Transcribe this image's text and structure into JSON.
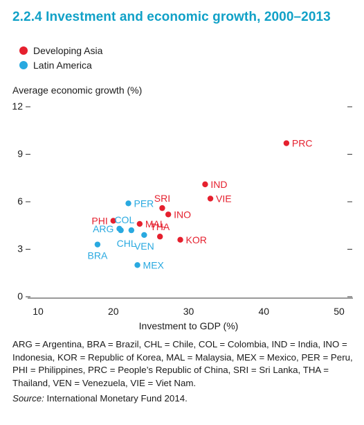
{
  "title": "2.2.4  Investment and economic growth, 2000–2013",
  "colors": {
    "title": "#11a1c7",
    "developing_asia": "#e5202e",
    "latin_america": "#29a9e0",
    "axis": "#333333"
  },
  "legend": [
    {
      "label": "Developing Asia",
      "color": "#e5202e"
    },
    {
      "label": "Latin America",
      "color": "#29a9e0"
    }
  ],
  "footnote": "ARG = Argentina, BRA = Brazil, CHL = Chile, COL = Colombia, IND = India, INO = Indonesia, KOR = Republic of Korea, MAL = Malaysia, MEX = Mexico, PER = Peru, PHI = Philippines, PRC = People’s Republic of China, SRI = Sri Lanka, THA = Thailand, VEN = Venezuela, VIE = Viet Nam.",
  "source_label": "Source:",
  "source_text": " International Monetary Fund 2014.",
  "chart_data": {
    "type": "scatter",
    "xlabel": "Investment to GDP (%)",
    "ylabel": "Average economic growth (%)",
    "xlim": [
      10,
      50
    ],
    "ylim": [
      0,
      12
    ],
    "xticks": [
      10,
      20,
      30,
      40,
      50
    ],
    "yticks": [
      0,
      3,
      6,
      9,
      12
    ],
    "grid": false,
    "legend_position": "top-left",
    "series": [
      {
        "name": "Developing Asia",
        "color": "#e5202e",
        "points": [
          {
            "label": "PRC",
            "x": 43.0,
            "y": 9.7,
            "pos": "right"
          },
          {
            "label": "IND",
            "x": 32.2,
            "y": 7.1,
            "pos": "right"
          },
          {
            "label": "VIE",
            "x": 32.9,
            "y": 6.2,
            "pos": "right"
          },
          {
            "label": "SRI",
            "x": 26.5,
            "y": 5.6,
            "pos": "above"
          },
          {
            "label": "INO",
            "x": 27.3,
            "y": 5.2,
            "pos": "right"
          },
          {
            "label": "MAL",
            "x": 23.5,
            "y": 4.6,
            "pos": "right"
          },
          {
            "label": "PHI",
            "x": 20.0,
            "y": 4.8,
            "pos": "left"
          },
          {
            "label": "THA",
            "x": 26.2,
            "y": 3.8,
            "pos": "above"
          },
          {
            "label": "KOR",
            "x": 28.9,
            "y": 3.6,
            "pos": "right"
          }
        ]
      },
      {
        "name": "Latin America",
        "color": "#29a9e0",
        "points": [
          {
            "label": "PER",
            "x": 22.0,
            "y": 5.9,
            "pos": "right"
          },
          {
            "label": "COL",
            "x": 22.4,
            "y": 4.2,
            "pos": "aboveright"
          },
          {
            "label": "ARG",
            "x": 20.8,
            "y": 4.3,
            "pos": "left"
          },
          {
            "label": "CHL",
            "x": 21.0,
            "y": 4.2,
            "pos": "belowright"
          },
          {
            "label": "VEN",
            "x": 24.1,
            "y": 3.9,
            "pos": "below"
          },
          {
            "label": "BRA",
            "x": 17.9,
            "y": 3.3,
            "pos": "below"
          },
          {
            "label": "MEX",
            "x": 23.2,
            "y": 2.0,
            "pos": "right"
          }
        ]
      }
    ]
  }
}
